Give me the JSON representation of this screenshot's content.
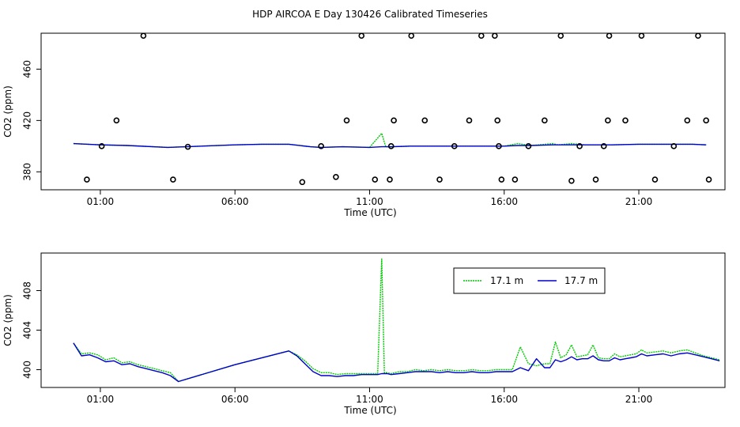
{
  "page_title": "HDP AIRCOA E  Day 130426  Calibrated Timeseries",
  "chart_data": [
    {
      "type": "scatter",
      "xlabel": "Time (UTC)",
      "ylabel": "CO2 (ppm)",
      "xlim": [
        -1.2,
        24.2
      ],
      "ylim": [
        366,
        488
      ],
      "xticks": [
        1,
        6,
        11,
        16,
        21
      ],
      "xtick_labels": [
        "01:00",
        "06:00",
        "11:00",
        "16:00",
        "21:00"
      ],
      "yticks": [
        380,
        420,
        460
      ],
      "yticks_labels": [
        "380",
        "420",
        "460"
      ],
      "legend": "none",
      "series": [
        {
          "color": "#00cc00",
          "style": "dotted-line",
          "x": [
            0.0,
            1.0,
            2.0,
            3.5,
            6.0,
            7.0,
            8.0,
            8.8,
            9.2,
            10.0,
            11.0,
            11.45,
            11.6,
            11.8,
            12.5,
            13.0,
            14.0,
            15.0,
            16.0,
            16.5,
            17.0,
            17.8,
            18.0,
            18.5,
            19.0,
            20.0,
            21.0,
            22.0,
            23.0,
            23.5
          ],
          "y": [
            402,
            401,
            400.5,
            399,
            401,
            401.5,
            401.5,
            399.5,
            399,
            399.5,
            399,
            410,
            399.5,
            399.5,
            400,
            400,
            400,
            400,
            400,
            402,
            400.5,
            402,
            401,
            402,
            401,
            401,
            401.5,
            401.5,
            401.5,
            401
          ]
        },
        {
          "color": "#0000cc",
          "style": "line",
          "x": [
            0.0,
            1.0,
            2.0,
            3.5,
            6.0,
            7.0,
            8.0,
            8.8,
            9.2,
            10.0,
            11.0,
            11.45,
            11.6,
            11.8,
            12.5,
            13.0,
            14.0,
            15.0,
            16.0,
            16.5,
            17.0,
            17.8,
            18.0,
            18.5,
            19.0,
            20.0,
            21.0,
            22.0,
            23.0,
            23.5
          ],
          "y": [
            402,
            401,
            400.5,
            399,
            401,
            401.5,
            401.5,
            399.5,
            399,
            399.5,
            399,
            399.5,
            399.5,
            399.5,
            400,
            400,
            400,
            400,
            400,
            400.5,
            400.5,
            401,
            401,
            401,
            401,
            401,
            401.5,
            401.5,
            401.5,
            401
          ]
        },
        {
          "color": "#000000",
          "style": "open-circle",
          "x": [
            0.5,
            1.05,
            1.6,
            2.6,
            3.7,
            4.25,
            8.5,
            9.2,
            9.75,
            10.15,
            10.7,
            11.2,
            11.75,
            11.8,
            11.9,
            12.55,
            13.05,
            13.6,
            14.15,
            14.7,
            15.15,
            15.65,
            15.75,
            15.8,
            15.9,
            16.4,
            16.9,
            17.5,
            18.1,
            18.5,
            18.8,
            19.4,
            19.7,
            19.85,
            19.9,
            20.5,
            21.1,
            21.6,
            22.3,
            22.8,
            23.2,
            23.5,
            23.6
          ],
          "y": [
            374,
            400,
            420,
            486,
            374,
            399.5,
            372,
            400,
            376,
            420,
            486,
            374,
            374,
            400,
            420,
            486,
            420,
            374,
            400,
            420,
            486,
            486,
            420,
            400,
            374,
            374,
            400,
            420,
            486,
            373,
            400,
            374,
            400,
            420,
            486,
            420,
            486,
            374,
            400,
            420,
            486,
            420,
            374
          ]
        }
      ]
    },
    {
      "type": "line",
      "xlabel": "Time (UTC)",
      "ylabel": "CO2 (ppm)",
      "xlim": [
        -1.2,
        24.2
      ],
      "ylim": [
        398.2,
        411.8
      ],
      "xticks": [
        1,
        6,
        11,
        16,
        21
      ],
      "xtick_labels": [
        "01:00",
        "06:00",
        "11:00",
        "16:00",
        "21:00"
      ],
      "yticks": [
        400,
        404,
        408
      ],
      "yticks_labels": [
        "400",
        "404",
        "408"
      ],
      "legend": "top-right",
      "series": [
        {
          "name": "17.1 m",
          "color": "#00cc00",
          "style": "dotted",
          "x": [
            0.0,
            0.3,
            0.6,
            0.9,
            1.2,
            1.5,
            1.8,
            2.1,
            2.4,
            2.7,
            3.0,
            3.3,
            3.6,
            3.9,
            6.0,
            8.0,
            8.3,
            8.6,
            8.9,
            9.2,
            9.5,
            9.8,
            10.1,
            10.4,
            10.7,
            11.0,
            11.3,
            11.45,
            11.55,
            11.65,
            11.8,
            12.1,
            12.4,
            12.7,
            13.0,
            13.3,
            13.6,
            13.9,
            14.2,
            14.5,
            14.8,
            15.1,
            15.4,
            15.7,
            16.0,
            16.3,
            16.6,
            16.9,
            17.2,
            17.5,
            17.7,
            17.9,
            18.1,
            18.3,
            18.5,
            18.7,
            18.9,
            19.1,
            19.3,
            19.5,
            19.7,
            19.9,
            20.1,
            20.3,
            20.5,
            20.7,
            20.9,
            21.1,
            21.3,
            21.6,
            21.9,
            22.2,
            22.5,
            22.8,
            23.1,
            23.4,
            23.7,
            24.0
          ],
          "y": [
            402.7,
            401.6,
            401.7,
            401.5,
            401.0,
            401.2,
            400.7,
            400.8,
            400.5,
            400.3,
            400.1,
            399.9,
            399.7,
            398.8,
            400.5,
            401.9,
            401.5,
            400.9,
            400.1,
            399.7,
            399.7,
            399.5,
            399.6,
            399.6,
            399.6,
            399.6,
            399.6,
            411.2,
            399.7,
            399.7,
            399.6,
            399.8,
            399.8,
            400.0,
            399.9,
            400.0,
            399.9,
            400.0,
            399.9,
            399.9,
            400.0,
            399.9,
            399.9,
            400.0,
            400.0,
            400.0,
            402.3,
            400.6,
            400.4,
            400.6,
            400.6,
            402.8,
            401.2,
            401.5,
            402.5,
            401.3,
            401.4,
            401.5,
            402.5,
            401.2,
            401.1,
            401.1,
            401.6,
            401.3,
            401.4,
            401.5,
            401.6,
            402.0,
            401.7,
            401.8,
            401.9,
            401.7,
            401.9,
            402.0,
            401.7,
            401.4,
            401.2,
            401.0
          ]
        },
        {
          "name": "17.7 m",
          "color": "#0000cc",
          "style": "solid",
          "x": [
            0.0,
            0.3,
            0.6,
            0.9,
            1.2,
            1.5,
            1.8,
            2.1,
            2.4,
            2.7,
            3.0,
            3.3,
            3.6,
            3.9,
            6.0,
            8.0,
            8.3,
            8.6,
            8.9,
            9.2,
            9.5,
            9.8,
            10.1,
            10.4,
            10.7,
            11.0,
            11.3,
            11.45,
            11.55,
            11.65,
            11.8,
            12.1,
            12.4,
            12.7,
            13.0,
            13.3,
            13.6,
            13.9,
            14.2,
            14.5,
            14.8,
            15.1,
            15.4,
            15.7,
            16.0,
            16.3,
            16.6,
            16.9,
            17.2,
            17.5,
            17.7,
            17.9,
            18.1,
            18.3,
            18.5,
            18.7,
            18.9,
            19.1,
            19.3,
            19.5,
            19.7,
            19.9,
            20.1,
            20.3,
            20.5,
            20.7,
            20.9,
            21.1,
            21.3,
            21.6,
            21.9,
            22.2,
            22.5,
            22.8,
            23.1,
            23.4,
            23.7,
            24.0
          ],
          "y": [
            402.7,
            401.4,
            401.5,
            401.2,
            400.8,
            400.9,
            400.5,
            400.6,
            400.3,
            400.1,
            399.9,
            399.7,
            399.4,
            398.8,
            400.5,
            401.9,
            401.4,
            400.6,
            399.8,
            399.4,
            399.4,
            399.3,
            399.4,
            399.4,
            399.5,
            399.5,
            399.5,
            399.6,
            399.6,
            399.6,
            399.5,
            399.6,
            399.7,
            399.8,
            399.8,
            399.8,
            399.7,
            399.8,
            399.7,
            399.7,
            399.8,
            399.7,
            399.7,
            399.8,
            399.8,
            399.8,
            400.2,
            399.9,
            401.1,
            400.2,
            400.2,
            401.0,
            400.8,
            401.0,
            401.3,
            401.0,
            401.1,
            401.1,
            401.4,
            401.0,
            400.9,
            400.9,
            401.2,
            401.0,
            401.1,
            401.2,
            401.3,
            401.6,
            401.4,
            401.5,
            401.6,
            401.4,
            401.6,
            401.7,
            401.5,
            401.3,
            401.1,
            400.9
          ]
        }
      ]
    }
  ]
}
